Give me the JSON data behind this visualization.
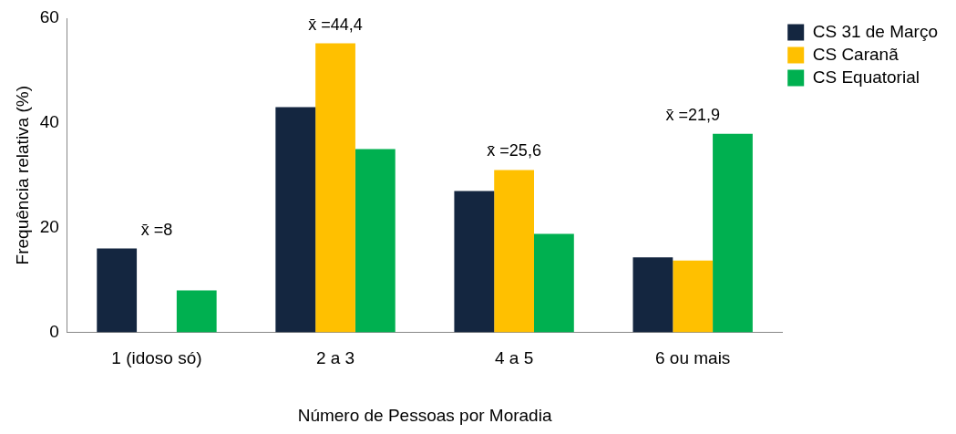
{
  "chart_data": {
    "type": "bar",
    "xlabel": "Número de Pessoas por Moradia",
    "ylabel": "Frequência relativa (%)",
    "categories": [
      "1 (idoso só)",
      "2 a 3",
      "4 a 5",
      "6 ou mais"
    ],
    "series": [
      {
        "name": "CS 31 de Março",
        "color": "#142640",
        "values": [
          16,
          43,
          27,
          14.3
        ]
      },
      {
        "name": "CS Caranã",
        "color": "#ffc000",
        "values": [
          0,
          55.2,
          31,
          13.7
        ]
      },
      {
        "name": "CS Equatorial",
        "color": "#00b050",
        "values": [
          8,
          35,
          18.8,
          37.9
        ]
      }
    ],
    "ylim": [
      0,
      60
    ],
    "yticks": [
      0,
      20,
      40,
      60
    ],
    "grid": false,
    "legend": "top right",
    "annotations": [
      "x̄ =8",
      "x̄ =44,4",
      "x̄ =25,6",
      "x̄ =21,9"
    ]
  }
}
